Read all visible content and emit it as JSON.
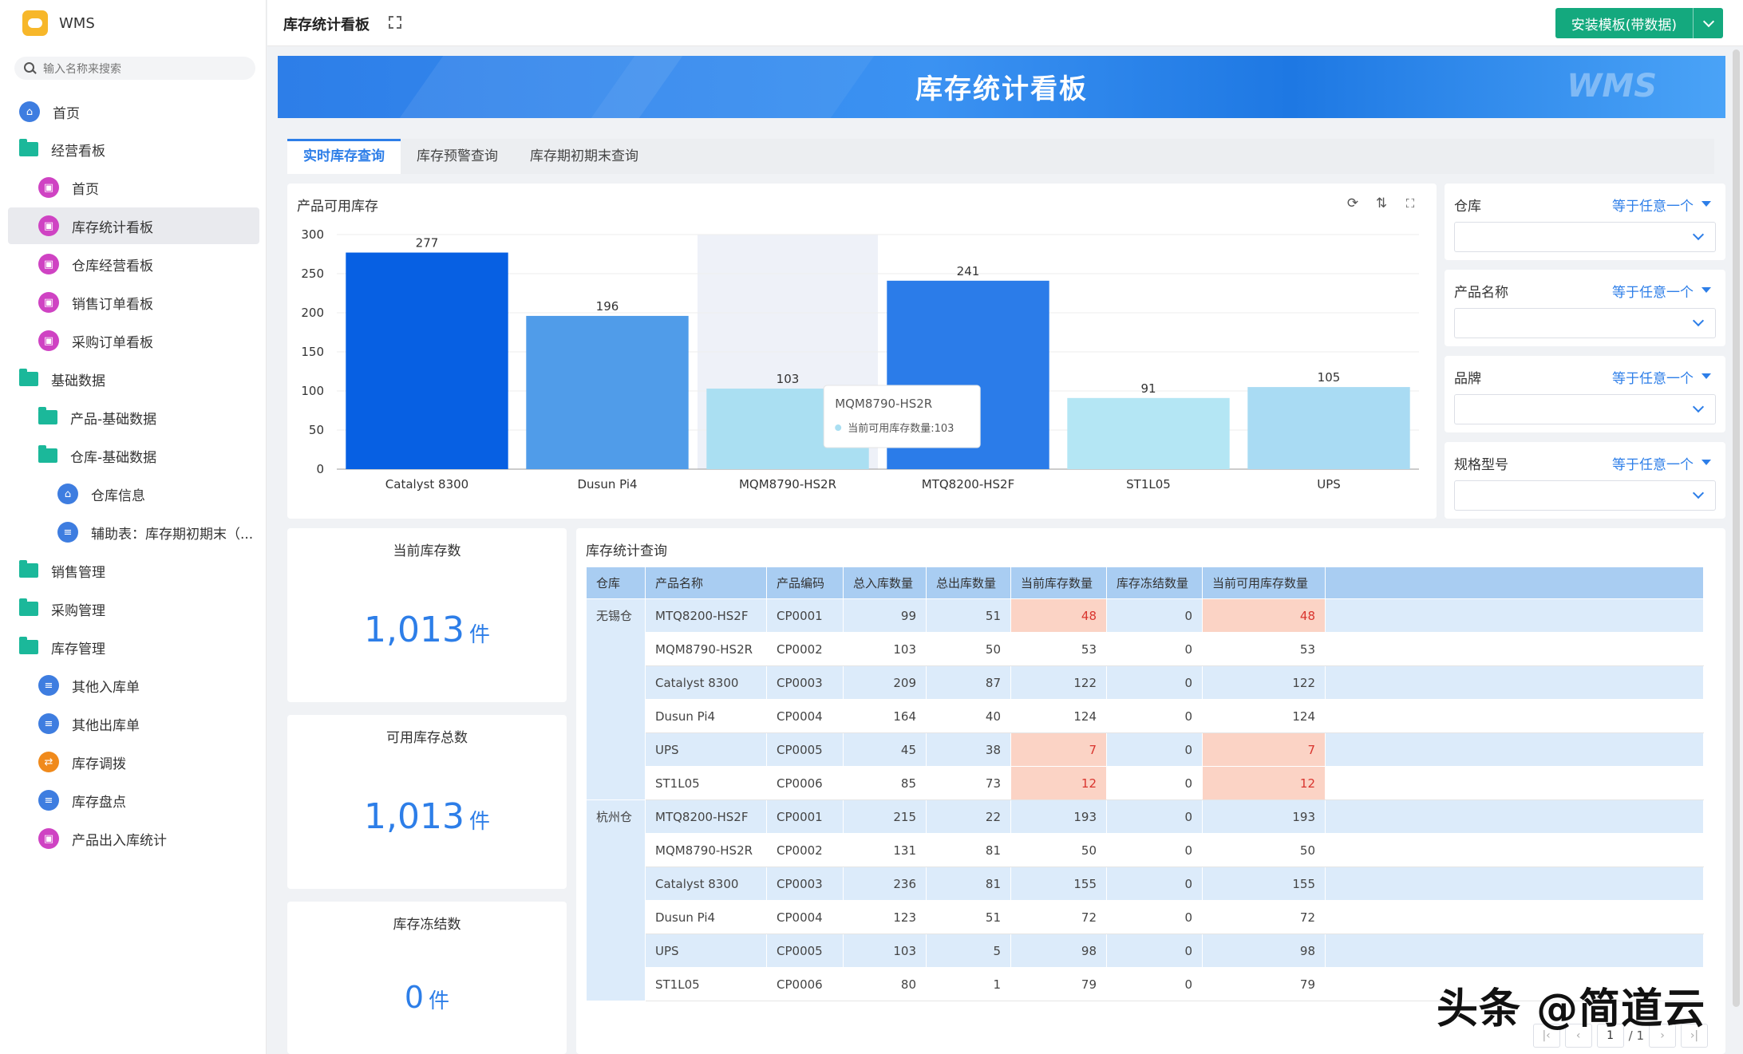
{
  "app": {
    "name": "WMS"
  },
  "search": {
    "placeholder": "输入名称来搜索"
  },
  "sidebar": {
    "items": [
      {
        "label": "首页",
        "icon": "home-icon"
      },
      {
        "label": "经营看板",
        "icon": "folder-icon"
      },
      {
        "label": "首页",
        "icon": "dashboard-icon"
      },
      {
        "label": "库存统计看板",
        "icon": "dashboard-icon"
      },
      {
        "label": "仓库经营看板",
        "icon": "dashboard-icon"
      },
      {
        "label": "销售订单看板",
        "icon": "dashboard-icon"
      },
      {
        "label": "采购订单看板",
        "icon": "dashboard-icon"
      },
      {
        "label": "基础数据",
        "icon": "folder-icon"
      },
      {
        "label": "产品-基础数据",
        "icon": "folder-icon"
      },
      {
        "label": "仓库-基础数据",
        "icon": "folder-icon"
      },
      {
        "label": "仓库信息",
        "icon": "home-icon"
      },
      {
        "label": "辅助表：库存期初期末（...",
        "icon": "form-icon"
      },
      {
        "label": "销售管理",
        "icon": "folder-icon"
      },
      {
        "label": "采购管理",
        "icon": "folder-icon"
      },
      {
        "label": "库存管理",
        "icon": "folder-icon"
      },
      {
        "label": "其他入库单",
        "icon": "form-icon"
      },
      {
        "label": "其他出库单",
        "icon": "form-icon"
      },
      {
        "label": "库存调拨",
        "icon": "transfer-icon"
      },
      {
        "label": "库存盘点",
        "icon": "form-icon"
      },
      {
        "label": "产品出入库统计",
        "icon": "dashboard-icon"
      }
    ]
  },
  "header": {
    "title": "库存统计看板",
    "install_label": "安装模板(带数据)"
  },
  "banner": {
    "title": "库存统计看板",
    "logo_text": "WMS"
  },
  "tabs": [
    {
      "label": "实时库存查询",
      "active": true
    },
    {
      "label": "库存预警查询",
      "active": false
    },
    {
      "label": "库存期初期末查询",
      "active": false
    }
  ],
  "chart_panel": {
    "title": "产品可用库存"
  },
  "chart_data": {
    "type": "bar",
    "title": "",
    "xlabel": "",
    "ylabel": "",
    "ylim": [
      0,
      300
    ],
    "yticks": [
      0,
      50,
      100,
      150,
      200,
      250,
      300
    ],
    "categories": [
      "Catalyst 8300",
      "Dusun Pi4",
      "MQM8790-HS2R",
      "MTQ8200-HS2F",
      "ST1L05",
      "UPS"
    ],
    "values": [
      277,
      196,
      103,
      241,
      91,
      105
    ],
    "colors": [
      "#0760e3",
      "#509ce9",
      "#aadff2",
      "#2b7ce9",
      "#b4e6f4",
      "#a9dbf3"
    ],
    "highlight_index": 2,
    "tooltip": {
      "title": "MQM8790-HS2R",
      "text": "当前可用库存数量:103"
    }
  },
  "filters": [
    {
      "label": "仓库",
      "operator": "等于任意一个"
    },
    {
      "label": "产品名称",
      "operator": "等于任意一个"
    },
    {
      "label": "品牌",
      "operator": "等于任意一个"
    },
    {
      "label": "规格型号",
      "operator": "等于任意一个"
    }
  ],
  "stats": [
    {
      "label": "当前库存数",
      "value": "1,013",
      "unit": "件"
    },
    {
      "label": "可用库存总数",
      "value": "1,013",
      "unit": "件"
    },
    {
      "label": "库存冻结数",
      "value": "0",
      "unit": "件"
    }
  ],
  "table": {
    "title": "库存统计查询",
    "columns": [
      "仓库",
      "产品名称",
      "产品编码",
      "总入库数量",
      "总出库数量",
      "当前库存数量",
      "库存冻结数量",
      "当前可用库存数量"
    ],
    "rows": [
      {
        "warehouse": "无锡仓",
        "name": "MTQ8200-HS2F",
        "code": "CP0001",
        "in": "99",
        "out": "51",
        "current": "48",
        "frozen": "0",
        "available": "48",
        "warn": true
      },
      {
        "warehouse": "",
        "name": "MQM8790-HS2R",
        "code": "CP0002",
        "in": "103",
        "out": "50",
        "current": "53",
        "frozen": "0",
        "available": "53",
        "warn": false
      },
      {
        "warehouse": "",
        "name": "Catalyst 8300",
        "code": "CP0003",
        "in": "209",
        "out": "87",
        "current": "122",
        "frozen": "0",
        "available": "122",
        "warn": false
      },
      {
        "warehouse": "",
        "name": "Dusun Pi4",
        "code": "CP0004",
        "in": "164",
        "out": "40",
        "current": "124",
        "frozen": "0",
        "available": "124",
        "warn": false
      },
      {
        "warehouse": "",
        "name": "UPS",
        "code": "CP0005",
        "in": "45",
        "out": "38",
        "current": "7",
        "frozen": "0",
        "available": "7",
        "warn": true
      },
      {
        "warehouse": "",
        "name": "ST1L05",
        "code": "CP0006",
        "in": "85",
        "out": "73",
        "current": "12",
        "frozen": "0",
        "available": "12",
        "warn": true
      },
      {
        "warehouse": "杭州仓",
        "name": "MTQ8200-HS2F",
        "code": "CP0001",
        "in": "215",
        "out": "22",
        "current": "193",
        "frozen": "0",
        "available": "193",
        "warn": false
      },
      {
        "warehouse": "",
        "name": "MQM8790-HS2R",
        "code": "CP0002",
        "in": "131",
        "out": "81",
        "current": "50",
        "frozen": "0",
        "available": "50",
        "warn": false
      },
      {
        "warehouse": "",
        "name": "Catalyst 8300",
        "code": "CP0003",
        "in": "236",
        "out": "81",
        "current": "155",
        "frozen": "0",
        "available": "155",
        "warn": false
      },
      {
        "warehouse": "",
        "name": "Dusun Pi4",
        "code": "CP0004",
        "in": "123",
        "out": "51",
        "current": "72",
        "frozen": "0",
        "available": "72",
        "warn": false
      },
      {
        "warehouse": "",
        "name": "UPS",
        "code": "CP0005",
        "in": "103",
        "out": "5",
        "current": "98",
        "frozen": "0",
        "available": "98",
        "warn": false
      },
      {
        "warehouse": "",
        "name": "ST1L05",
        "code": "CP0006",
        "in": "80",
        "out": "1",
        "current": "79",
        "frozen": "0",
        "available": "79",
        "warn": false
      }
    ]
  },
  "pager": {
    "page": "1",
    "total": "/ 1"
  },
  "watermark": "头条 @简道云"
}
